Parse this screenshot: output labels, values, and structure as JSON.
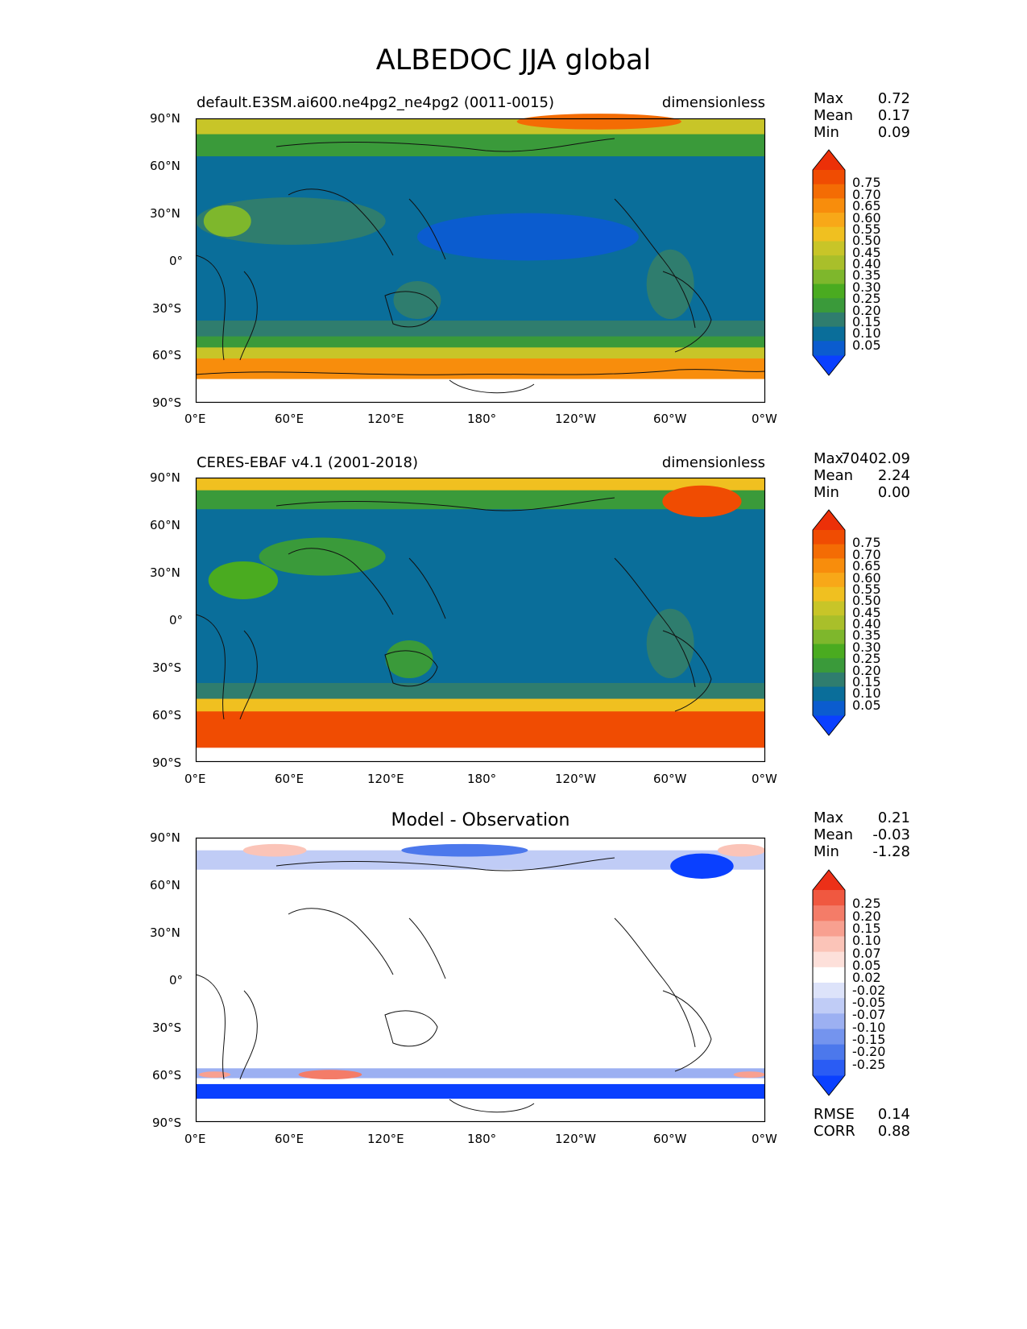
{
  "title": "ALBEDOC JJA global",
  "lat_ticks": [
    "90°N",
    "60°N",
    "30°N",
    "0°",
    "30°S",
    "60°S",
    "90°S"
  ],
  "lon_ticks": [
    "0°E",
    "60°E",
    "120°E",
    "180°",
    "120°W",
    "60°W",
    "0°W"
  ],
  "colors": {
    "seq": [
      "#0a40ff",
      "#0b5ccf",
      "#0a6e9a",
      "#2f7d6e",
      "#3a9a3a",
      "#4aab20",
      "#7eb72c",
      "#a9bf2a",
      "#c8c528",
      "#f0c020",
      "#f8a818",
      "#f88d0c",
      "#f46c04",
      "#f04c02",
      "#ec3008"
    ],
    "diff": [
      "#0a40ff",
      "#2a5cf4",
      "#4c78ec",
      "#7494ee",
      "#9cb0f2",
      "#c0ccf6",
      "#dde3fa",
      "#ffffff",
      "#fde0da",
      "#fbc4b8",
      "#f8a090",
      "#f47c68",
      "#f05840",
      "#ec3018"
    ]
  },
  "chart_data": [
    {
      "type": "heatmap",
      "panel": "test",
      "title_left": "default.E3SM.ai600.ne4pg2_ne4pg2 (0011-0015)",
      "title_right": "dimensionless",
      "stats": {
        "labels": [
          "Max",
          "Mean",
          "Min"
        ],
        "values": [
          "0.72",
          "0.17",
          "0.09"
        ]
      },
      "colorbar": {
        "levels": [
          "0.75",
          "0.70",
          "0.65",
          "0.60",
          "0.55",
          "0.50",
          "0.45",
          "0.40",
          "0.35",
          "0.30",
          "0.25",
          "0.20",
          "0.15",
          "0.10",
          "0.05"
        ]
      },
      "xlim": [
        0,
        360
      ],
      "ylim": [
        -90,
        90
      ]
    },
    {
      "type": "heatmap",
      "panel": "reference",
      "title_left": "CERES-EBAF v4.1 (2001-2018)",
      "title_right": "dimensionless",
      "stats": {
        "labels": [
          "Max",
          "Mean",
          "Min"
        ],
        "values": [
          "70402.09",
          "2.24",
          "0.00"
        ]
      },
      "colorbar": {
        "levels": [
          "0.75",
          "0.70",
          "0.65",
          "0.60",
          "0.55",
          "0.50",
          "0.45",
          "0.40",
          "0.35",
          "0.30",
          "0.25",
          "0.20",
          "0.15",
          "0.10",
          "0.05"
        ]
      },
      "xlim": [
        0,
        360
      ],
      "ylim": [
        -90,
        90
      ]
    },
    {
      "type": "heatmap",
      "panel": "difference",
      "title": "Model - Observation",
      "stats": {
        "labels": [
          "Max",
          "Mean",
          "Min"
        ],
        "values": [
          "0.21",
          "-0.03",
          "-1.28"
        ]
      },
      "colorbar": {
        "levels": [
          "0.25",
          "0.20",
          "0.15",
          "0.10",
          "0.07",
          "0.05",
          "0.02",
          "-0.02",
          "-0.05",
          "-0.07",
          "-0.10",
          "-0.15",
          "-0.20",
          "-0.25"
        ]
      },
      "metrics": {
        "labels": [
          "RMSE",
          "CORR"
        ],
        "values": [
          "0.14",
          "0.88"
        ]
      },
      "xlim": [
        0,
        360
      ],
      "ylim": [
        -90,
        90
      ]
    }
  ]
}
